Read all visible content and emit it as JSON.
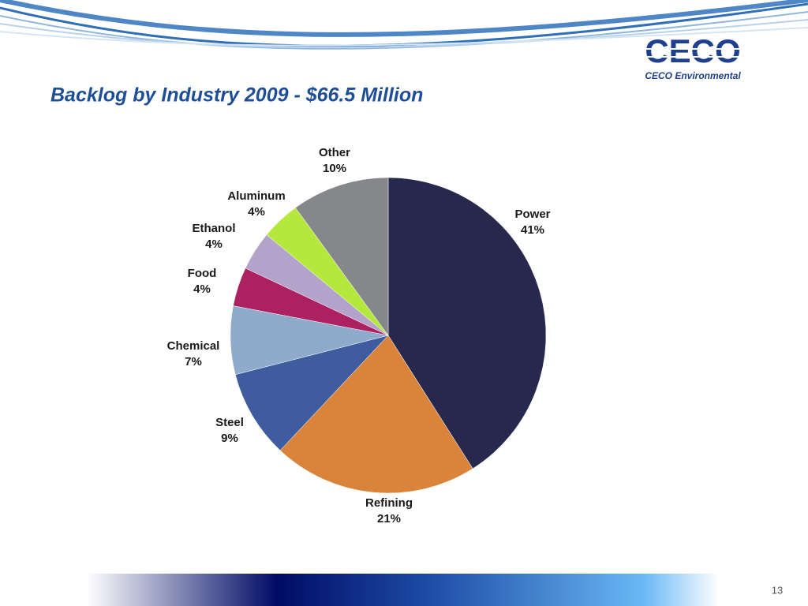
{
  "header": {
    "title": "Backlog by Industry 2009 - $66.5 Million"
  },
  "logo": {
    "mark": "CECO",
    "caption": "CECO Environmental"
  },
  "chart_data": {
    "type": "pie",
    "categories": [
      "Power",
      "Refining",
      "Steel",
      "Chemical",
      "Food",
      "Ethanol",
      "Aluminum",
      "Other"
    ],
    "values": [
      41,
      21,
      9,
      7,
      4,
      4,
      4,
      10
    ],
    "value_labels": [
      "41%",
      "21%",
      "9%",
      "7%",
      "4%",
      "4%",
      "4%",
      "10%"
    ],
    "colors": [
      "#27284d",
      "#d9843a",
      "#3e5c9e",
      "#8eabcb",
      "#ac2160",
      "#b3a2c9",
      "#b5e83c",
      "#86878b"
    ]
  },
  "footer": {
    "page_number": "13"
  }
}
